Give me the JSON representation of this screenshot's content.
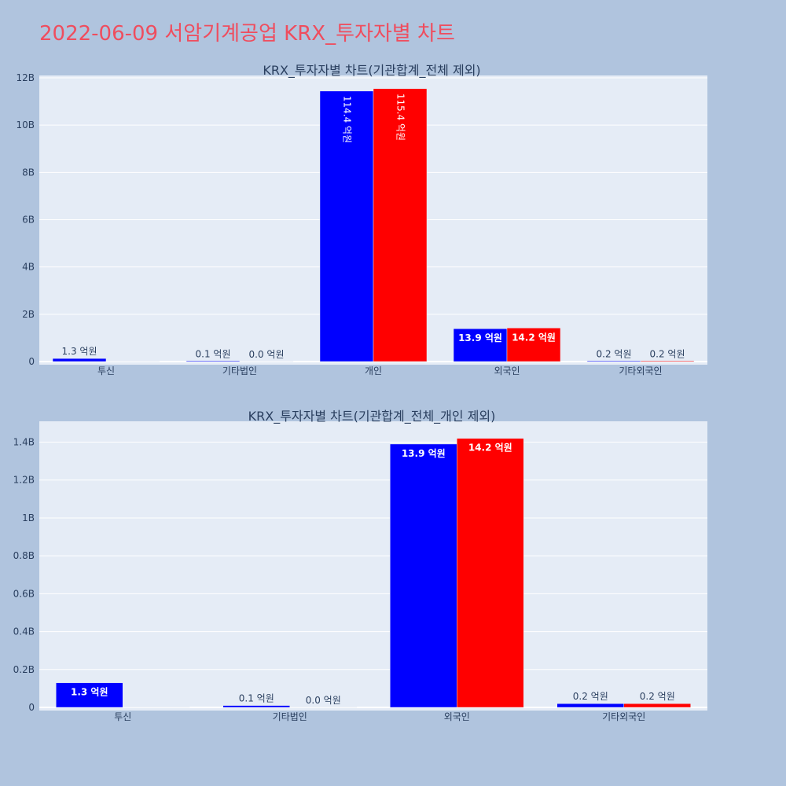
{
  "page_title": "2022-06-09 서암기계공업 KRX_투자자별 차트",
  "colors": {
    "buy": "#0000ff",
    "sell": "#ff0000",
    "plot_bg": "#e5ecf6",
    "page_bg": "#b0c4de",
    "title": "#ef4d5e"
  },
  "chart_data": [
    {
      "type": "bar",
      "title": "KRX_투자자별 차트(기관합계_전체 제외)",
      "categories": [
        "투신",
        "기타법인",
        "개인",
        "외국인",
        "기타외국인"
      ],
      "series": [
        {
          "values": [
            130000000,
            10000000,
            11440000000,
            1390000000,
            20000000
          ],
          "labels": [
            "1.3 억원",
            "0.1 억원",
            "114.4 억원",
            "13.9 억원",
            "0.2 억원"
          ]
        },
        {
          "values": [
            0,
            0,
            11540000000,
            1420000000,
            20000000
          ],
          "labels": [
            "",
            "0.0 억원",
            "115.4 억원",
            "14.2 억원",
            "0.2 억원"
          ]
        }
      ],
      "ylim": [
        0,
        12100000000
      ],
      "yticks": [
        0,
        2000000000,
        4000000000,
        6000000000,
        8000000000,
        10000000000,
        12000000000
      ],
      "ytick_labels": [
        "0",
        "2B",
        "4B",
        "6B",
        "8B",
        "10B",
        "12B"
      ],
      "grid": true,
      "legend": "none"
    },
    {
      "type": "bar",
      "title": "KRX_투자자별 차트(기관합계_전체_개인 제외)",
      "categories": [
        "투신",
        "기타법인",
        "외국인",
        "기타외국인"
      ],
      "series": [
        {
          "values": [
            130000000,
            10000000,
            1390000000,
            20000000
          ],
          "labels": [
            "1.3 억원",
            "0.1 억원",
            "13.9 억원",
            "0.2 억원"
          ]
        },
        {
          "values": [
            0,
            0,
            1420000000,
            20000000
          ],
          "labels": [
            "",
            "0.0 억원",
            "14.2 억원",
            "0.2 억원"
          ]
        }
      ],
      "ylim": [
        0,
        1510000000
      ],
      "yticks": [
        0,
        200000000,
        400000000,
        600000000,
        800000000,
        1000000000,
        1200000000,
        1400000000
      ],
      "ytick_labels": [
        "0",
        "0.2B",
        "0.4B",
        "0.6B",
        "0.8B",
        "1B",
        "1.2B",
        "1.4B"
      ],
      "grid": true,
      "legend": "none"
    }
  ]
}
